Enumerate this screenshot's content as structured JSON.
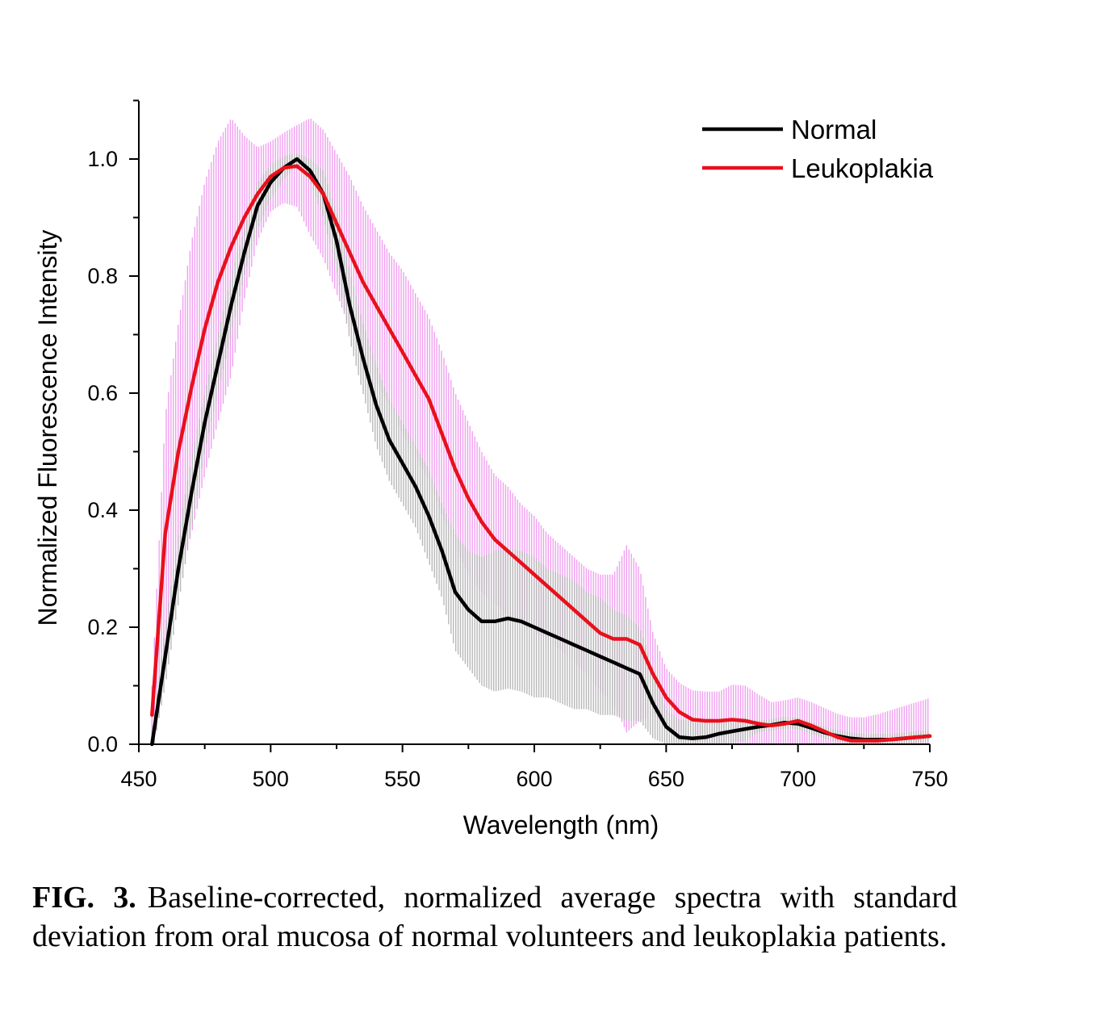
{
  "chart_data": {
    "type": "line",
    "xlabel": "Wavelength (nm)",
    "ylabel": "Normalized Fluorescence Intensity",
    "xlim": [
      450,
      750
    ],
    "ylim": [
      0,
      1.1
    ],
    "x_ticks": [
      450,
      500,
      550,
      600,
      650,
      700,
      750
    ],
    "y_ticks": [
      0.0,
      0.2,
      0.4,
      0.6,
      0.8,
      1.0
    ],
    "x_tick_labels": [
      "450",
      "500",
      "550",
      "600",
      "650",
      "700",
      "750"
    ],
    "y_tick_labels": [
      "0.0",
      "0.2",
      "0.4",
      "0.6",
      "0.8",
      "1.0"
    ],
    "legend_position": "top-right",
    "grid": false,
    "series": [
      {
        "name": "Normal",
        "color": "#000000",
        "band_color": "#b8b8b8",
        "x": [
          455,
          460,
          465,
          470,
          475,
          480,
          485,
          490,
          495,
          500,
          505,
          510,
          515,
          520,
          525,
          530,
          535,
          540,
          545,
          550,
          555,
          560,
          565,
          570,
          575,
          580,
          585,
          590,
          595,
          600,
          605,
          610,
          615,
          620,
          625,
          630,
          635,
          640,
          645,
          650,
          655,
          660,
          665,
          670,
          675,
          680,
          685,
          690,
          695,
          700,
          705,
          710,
          715,
          720,
          725,
          730,
          735,
          740,
          745,
          750
        ],
        "y": [
          0.0,
          0.15,
          0.3,
          0.43,
          0.55,
          0.65,
          0.75,
          0.84,
          0.92,
          0.96,
          0.985,
          1.0,
          0.98,
          0.94,
          0.86,
          0.75,
          0.66,
          0.58,
          0.52,
          0.48,
          0.44,
          0.39,
          0.33,
          0.26,
          0.23,
          0.21,
          0.21,
          0.215,
          0.21,
          0.2,
          0.19,
          0.18,
          0.17,
          0.16,
          0.15,
          0.14,
          0.13,
          0.12,
          0.07,
          0.03,
          0.012,
          0.01,
          0.012,
          0.018,
          0.022,
          0.026,
          0.03,
          0.033,
          0.037,
          0.035,
          0.028,
          0.02,
          0.014,
          0.01,
          0.008,
          0.008,
          0.008,
          0.01,
          0.012,
          0.014
        ],
        "std": [
          0.02,
          0.05,
          0.06,
          0.06,
          0.05,
          0.05,
          0.05,
          0.04,
          0.04,
          0.03,
          0.02,
          0.01,
          0.02,
          0.04,
          0.05,
          0.06,
          0.06,
          0.07,
          0.07,
          0.07,
          0.07,
          0.08,
          0.08,
          0.1,
          0.1,
          0.11,
          0.12,
          0.12,
          0.12,
          0.12,
          0.11,
          0.11,
          0.11,
          0.1,
          0.1,
          0.09,
          0.09,
          0.08,
          0.06,
          0.03,
          0.03,
          0.03,
          0.03,
          0.02,
          0.02,
          0.02,
          0.01,
          0.01,
          0.01,
          0.01,
          0.01,
          0.01,
          0.01,
          0.01,
          0.01,
          0.01,
          0.01,
          0.01,
          0.01,
          0.01
        ]
      },
      {
        "name": "Leukoplakia",
        "color": "#e8101c",
        "band_color": "#f0a0f0",
        "x": [
          455,
          460,
          465,
          470,
          475,
          480,
          485,
          490,
          495,
          500,
          505,
          510,
          515,
          520,
          525,
          530,
          535,
          540,
          545,
          550,
          555,
          560,
          565,
          570,
          575,
          580,
          585,
          590,
          595,
          600,
          605,
          610,
          615,
          620,
          625,
          630,
          635,
          640,
          645,
          650,
          655,
          660,
          665,
          670,
          675,
          680,
          685,
          690,
          695,
          700,
          705,
          710,
          715,
          720,
          725,
          730,
          735,
          740,
          745,
          750
        ],
        "y": [
          0.05,
          0.36,
          0.5,
          0.61,
          0.71,
          0.79,
          0.85,
          0.9,
          0.94,
          0.97,
          0.985,
          0.988,
          0.97,
          0.94,
          0.89,
          0.84,
          0.79,
          0.75,
          0.71,
          0.67,
          0.63,
          0.59,
          0.53,
          0.47,
          0.42,
          0.38,
          0.35,
          0.33,
          0.31,
          0.29,
          0.27,
          0.25,
          0.23,
          0.21,
          0.19,
          0.18,
          0.18,
          0.17,
          0.12,
          0.08,
          0.055,
          0.042,
          0.04,
          0.04,
          0.042,
          0.04,
          0.035,
          0.032,
          0.035,
          0.04,
          0.032,
          0.022,
          0.012,
          0.006,
          0.006,
          0.006,
          0.008,
          0.01,
          0.012,
          0.014
        ],
        "std": [
          0.05,
          0.2,
          0.22,
          0.25,
          0.25,
          0.24,
          0.22,
          0.14,
          0.08,
          0.06,
          0.06,
          0.07,
          0.1,
          0.11,
          0.12,
          0.13,
          0.13,
          0.13,
          0.13,
          0.14,
          0.14,
          0.14,
          0.14,
          0.13,
          0.13,
          0.12,
          0.11,
          0.11,
          0.1,
          0.1,
          0.09,
          0.09,
          0.09,
          0.09,
          0.1,
          0.11,
          0.16,
          0.13,
          0.07,
          0.05,
          0.05,
          0.05,
          0.05,
          0.05,
          0.06,
          0.06,
          0.05,
          0.04,
          0.04,
          0.04,
          0.04,
          0.04,
          0.04,
          0.04,
          0.04,
          0.045,
          0.05,
          0.055,
          0.06,
          0.065
        ]
      }
    ]
  },
  "caption": {
    "label": "FIG. 3.",
    "text": "Baseline-corrected, normalized average spectra with standard deviation from oral mucosa of normal vol­unteers and leukoplakia patients."
  }
}
